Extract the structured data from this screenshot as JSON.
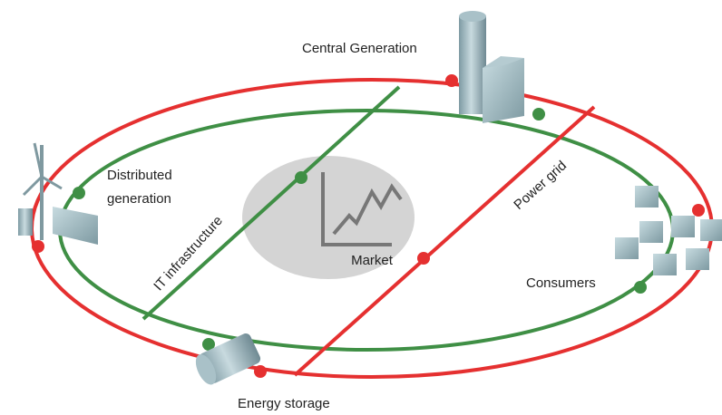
{
  "nodes": [
    {
      "label": "Central Generation"
    },
    {
      "label": [
        "Distributed",
        "generation"
      ]
    },
    {
      "label": "IT infrastructure"
    },
    {
      "label": "Market"
    },
    {
      "label": "Power grid"
    },
    {
      "label": "Consumers"
    },
    {
      "label": "Energy storage"
    }
  ]
}
